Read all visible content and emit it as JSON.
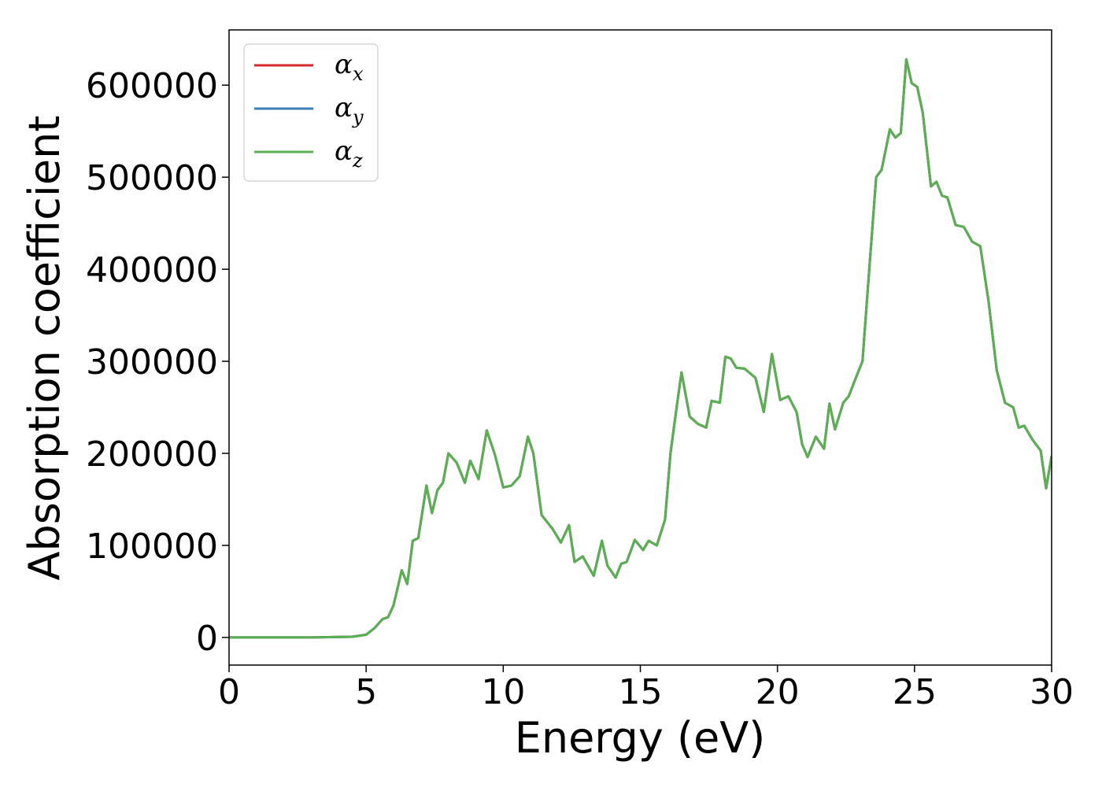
{
  "chart_data": {
    "type": "line",
    "title": "",
    "xlabel": "Energy (eV)",
    "ylabel": "Absorption coefficient",
    "xlim": [
      0,
      30
    ],
    "ylim": [
      -30000,
      660000
    ],
    "xticks": [
      0,
      5,
      10,
      15,
      20,
      25,
      30
    ],
    "yticks": [
      0,
      100000,
      200000,
      300000,
      400000,
      500000,
      600000
    ],
    "grid": false,
    "legend_position": "top-left",
    "x": [
      0,
      3,
      4.5,
      5.0,
      5.3,
      5.6,
      5.8,
      6.0,
      6.3,
      6.5,
      6.7,
      6.9,
      7.2,
      7.4,
      7.6,
      7.8,
      8.0,
      8.3,
      8.6,
      8.8,
      9.1,
      9.4,
      9.7,
      10.0,
      10.3,
      10.6,
      10.9,
      11.1,
      11.4,
      11.8,
      12.1,
      12.4,
      12.6,
      12.9,
      13.3,
      13.6,
      13.8,
      14.1,
      14.3,
      14.5,
      14.8,
      15.1,
      15.3,
      15.6,
      15.9,
      16.1,
      16.3,
      16.5,
      16.8,
      17.1,
      17.4,
      17.6,
      17.9,
      18.1,
      18.3,
      18.5,
      18.8,
      19.2,
      19.5,
      19.8,
      20.1,
      20.4,
      20.7,
      20.9,
      21.1,
      21.4,
      21.7,
      21.9,
      22.1,
      22.4,
      22.6,
      22.9,
      23.1,
      23.3,
      23.6,
      23.8,
      24.1,
      24.3,
      24.5,
      24.7,
      24.9,
      25.1,
      25.3,
      25.6,
      25.8,
      26.0,
      26.2,
      26.5,
      26.8,
      27.1,
      27.4,
      27.7,
      28.0,
      28.3,
      28.6,
      28.8,
      29.0,
      29.3,
      29.6,
      29.8,
      30.0
    ],
    "series": [
      {
        "name": "αx",
        "color": "#d62728",
        "values": [
          0,
          0,
          800,
          3000,
          10000,
          20000,
          22000,
          35000,
          73000,
          58000,
          105000,
          108000,
          165000,
          135000,
          160000,
          168000,
          200000,
          190000,
          168000,
          192000,
          172000,
          225000,
          198000,
          163000,
          165000,
          175000,
          218000,
          200000,
          133000,
          118000,
          103000,
          122000,
          82000,
          88000,
          67000,
          105000,
          78000,
          65000,
          80000,
          82000,
          106000,
          95000,
          105000,
          100000,
          128000,
          200000,
          245000,
          288000,
          240000,
          232000,
          228000,
          257000,
          255000,
          305000,
          303000,
          293000,
          292000,
          282000,
          245000,
          308000,
          258000,
          262000,
          245000,
          210000,
          196000,
          218000,
          205000,
          254000,
          226000,
          255000,
          262000,
          285000,
          300000,
          380000,
          500000,
          508000,
          552000,
          543000,
          548000,
          628000,
          602000,
          598000,
          570000,
          490000,
          495000,
          480000,
          478000,
          448000,
          446000,
          430000,
          425000,
          365000,
          290000,
          255000,
          250000,
          228000,
          230000,
          215000,
          203000,
          162000,
          197000
        ]
      },
      {
        "name": "αy",
        "color": "#3a7fb8",
        "values": [
          0,
          0,
          800,
          3000,
          10000,
          20000,
          22000,
          35000,
          73000,
          58000,
          105000,
          108000,
          165000,
          135000,
          160000,
          168000,
          200000,
          190000,
          168000,
          192000,
          172000,
          225000,
          198000,
          163000,
          165000,
          175000,
          218000,
          200000,
          133000,
          118000,
          103000,
          122000,
          82000,
          88000,
          67000,
          105000,
          78000,
          65000,
          80000,
          82000,
          106000,
          95000,
          105000,
          100000,
          128000,
          200000,
          245000,
          288000,
          240000,
          232000,
          228000,
          257000,
          255000,
          305000,
          303000,
          293000,
          292000,
          282000,
          245000,
          308000,
          258000,
          262000,
          245000,
          210000,
          196000,
          218000,
          205000,
          254000,
          226000,
          255000,
          262000,
          285000,
          300000,
          380000,
          500000,
          508000,
          552000,
          543000,
          548000,
          628000,
          602000,
          598000,
          570000,
          490000,
          495000,
          480000,
          478000,
          448000,
          446000,
          430000,
          425000,
          365000,
          290000,
          255000,
          250000,
          228000,
          230000,
          215000,
          203000,
          162000,
          197000
        ]
      },
      {
        "name": "αz",
        "color": "#5aaf50",
        "values": [
          0,
          0,
          800,
          3000,
          10000,
          20000,
          22000,
          35000,
          73000,
          58000,
          105000,
          108000,
          165000,
          135000,
          160000,
          168000,
          200000,
          190000,
          168000,
          192000,
          172000,
          225000,
          198000,
          163000,
          165000,
          175000,
          218000,
          200000,
          133000,
          118000,
          103000,
          122000,
          82000,
          88000,
          67000,
          105000,
          78000,
          65000,
          80000,
          82000,
          106000,
          95000,
          105000,
          100000,
          128000,
          200000,
          245000,
          288000,
          240000,
          232000,
          228000,
          257000,
          255000,
          305000,
          303000,
          293000,
          292000,
          282000,
          245000,
          308000,
          258000,
          262000,
          245000,
          210000,
          196000,
          218000,
          205000,
          254000,
          226000,
          255000,
          262000,
          285000,
          300000,
          380000,
          500000,
          508000,
          552000,
          543000,
          548000,
          628000,
          602000,
          598000,
          570000,
          490000,
          495000,
          480000,
          478000,
          448000,
          446000,
          430000,
          425000,
          365000,
          290000,
          255000,
          250000,
          228000,
          230000,
          215000,
          203000,
          162000,
          197000
        ]
      }
    ]
  }
}
